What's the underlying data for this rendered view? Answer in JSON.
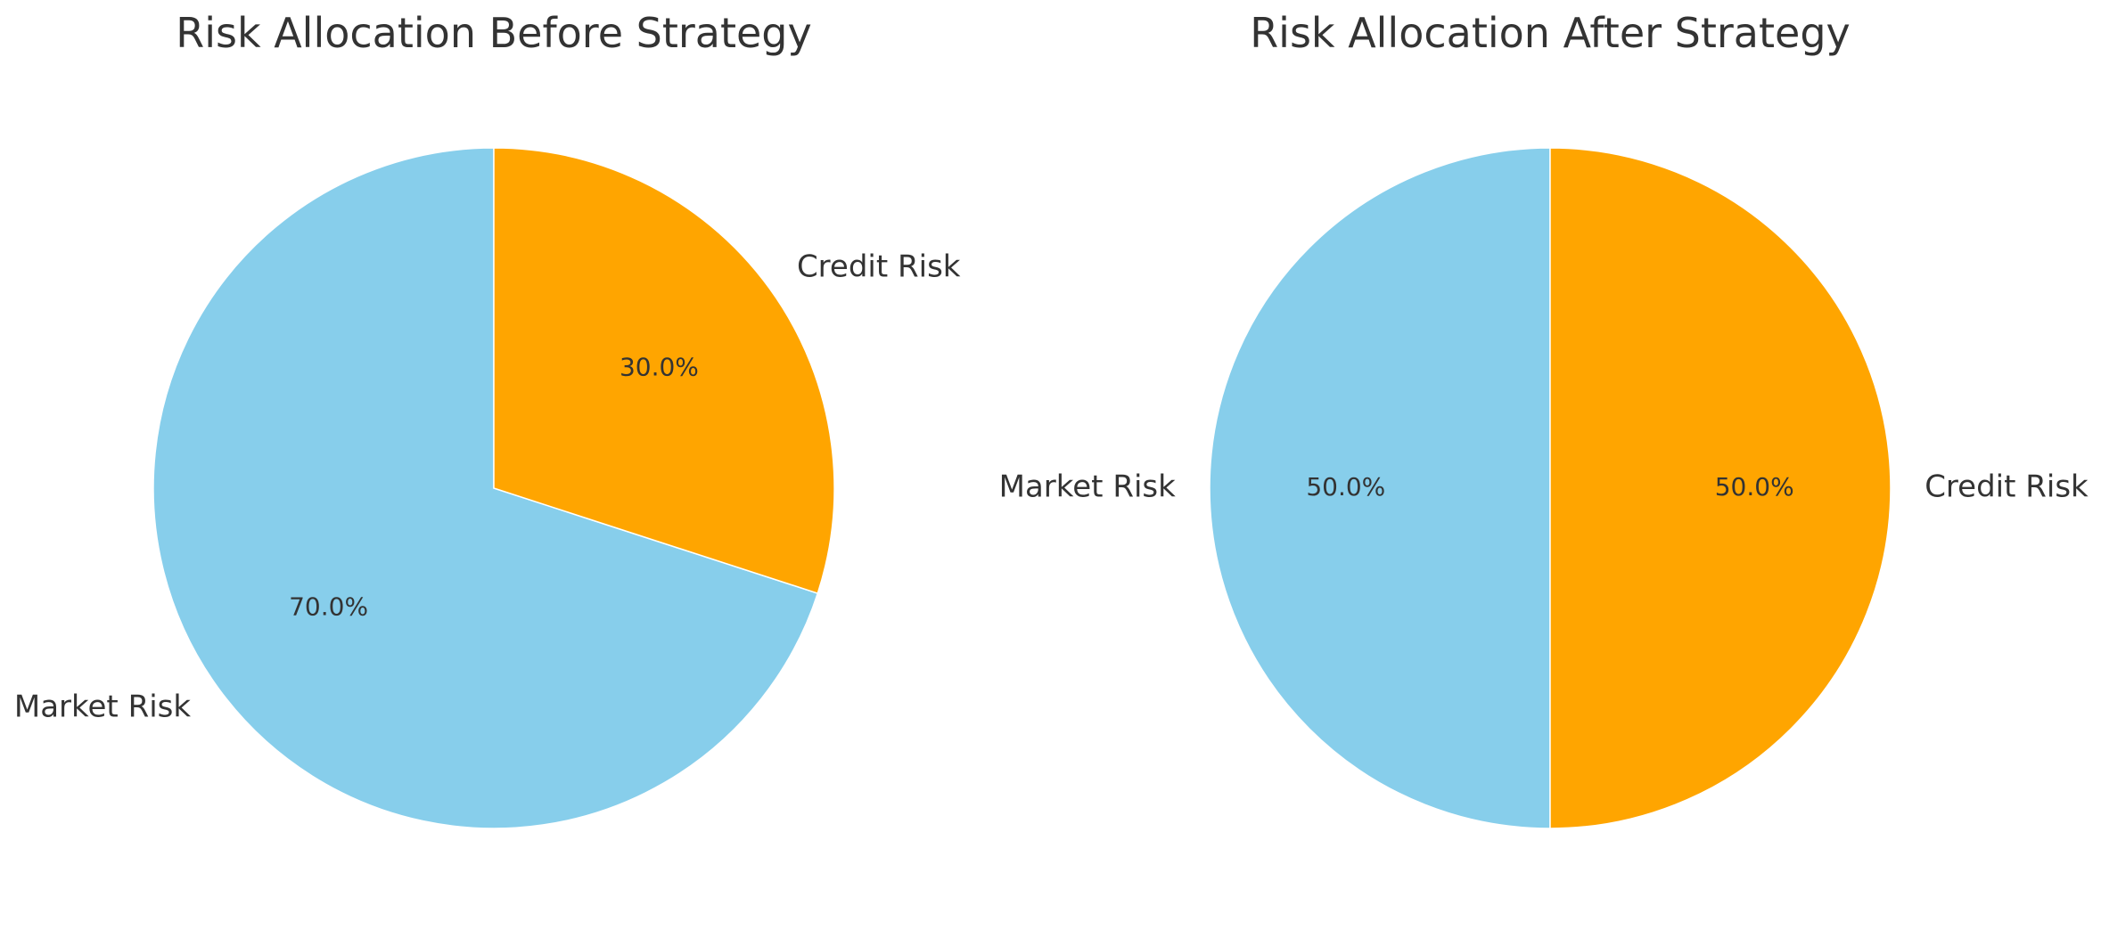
{
  "chart_data": [
    {
      "type": "pie",
      "title": "Risk Allocation Before Strategy",
      "labels": [
        "Market Risk",
        "Credit Risk"
      ],
      "values": [
        70,
        30
      ],
      "percent_labels": [
        "70.0%",
        "30.0%"
      ],
      "colors": [
        "#87CEEB",
        "#FFA500"
      ],
      "start_angle_deg": 90,
      "direction": "counterclockwise"
    },
    {
      "type": "pie",
      "title": "Risk Allocation After Strategy",
      "labels": [
        "Market Risk",
        "Credit Risk"
      ],
      "values": [
        50,
        50
      ],
      "percent_labels": [
        "50.0%",
        "50.0%"
      ],
      "colors": [
        "#87CEEB",
        "#FFA500"
      ],
      "start_angle_deg": 90,
      "direction": "counterclockwise"
    }
  ]
}
